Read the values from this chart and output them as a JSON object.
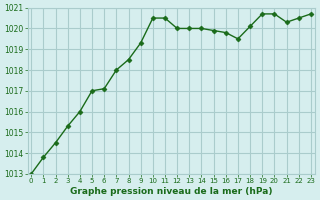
{
  "x": [
    0,
    1,
    2,
    3,
    4,
    5,
    6,
    7,
    8,
    9,
    10,
    11,
    12,
    13,
    14,
    15,
    16,
    17,
    18,
    19,
    20,
    21,
    22,
    23
  ],
  "y": [
    1013.0,
    1013.8,
    1014.5,
    1015.3,
    1016.0,
    1017.0,
    1017.1,
    1018.0,
    1018.5,
    1019.3,
    1020.5,
    1020.5,
    1020.0,
    1020.0,
    1020.0,
    1019.9,
    1019.8,
    1019.5,
    1020.1,
    1020.7,
    1020.7,
    1020.3,
    1020.5,
    1020.7
  ],
  "line_color": "#1a6b1a",
  "marker_color": "#1a6b1a",
  "bg_color": "#d6eeee",
  "grid_color": "#aacccc",
  "xlabel": "Graphe pression niveau de la mer (hPa)",
  "xlabel_color": "#1a6b1a",
  "tick_color": "#1a6b1a",
  "ylim": [
    1013,
    1021
  ],
  "xlim": [
    0,
    23
  ],
  "yticks": [
    1013,
    1014,
    1015,
    1016,
    1017,
    1018,
    1019,
    1020,
    1021
  ],
  "xticks": [
    0,
    1,
    2,
    3,
    4,
    5,
    6,
    7,
    8,
    9,
    10,
    11,
    12,
    13,
    14,
    15,
    16,
    17,
    18,
    19,
    20,
    21,
    22,
    23
  ]
}
